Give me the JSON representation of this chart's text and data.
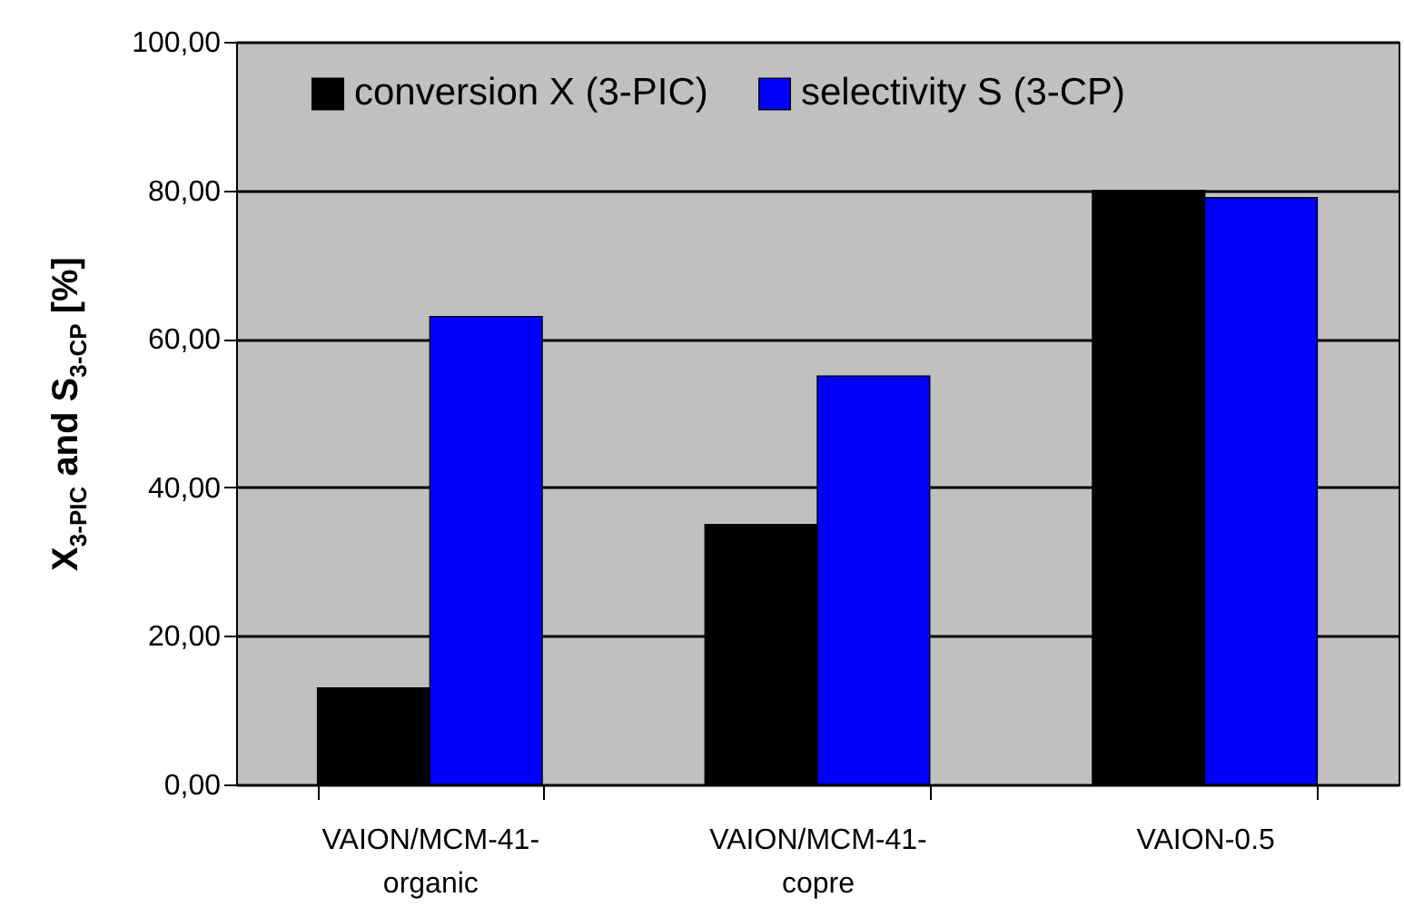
{
  "chart_data": {
    "type": "bar",
    "ylabel": "X$_{3-PIC}$ and S$_{3-CP}$ [%]",
    "categories": [
      "VAION/MCM-41-\norganic",
      "VAION/MCM-41-\ncopre",
      "VAION-0.5"
    ],
    "series": [
      {
        "name": "conversion X (3-PIC)",
        "color": "#000000",
        "values": [
          13,
          35,
          80
        ]
      },
      {
        "name": "selectivity S (3-CP)",
        "color": "#0000ff",
        "values": [
          63,
          55,
          79
        ]
      }
    ],
    "ylim": [
      0,
      100
    ],
    "yticks": [
      {
        "value": 0,
        "label": "0,00"
      },
      {
        "value": 20,
        "label": "20,00"
      },
      {
        "value": 40,
        "label": "40,00"
      },
      {
        "value": 60,
        "label": "60,00"
      },
      {
        "value": 80,
        "label": "80,00"
      },
      {
        "value": 100,
        "label": "100,00"
      }
    ],
    "grid": "y",
    "legend": "top"
  }
}
